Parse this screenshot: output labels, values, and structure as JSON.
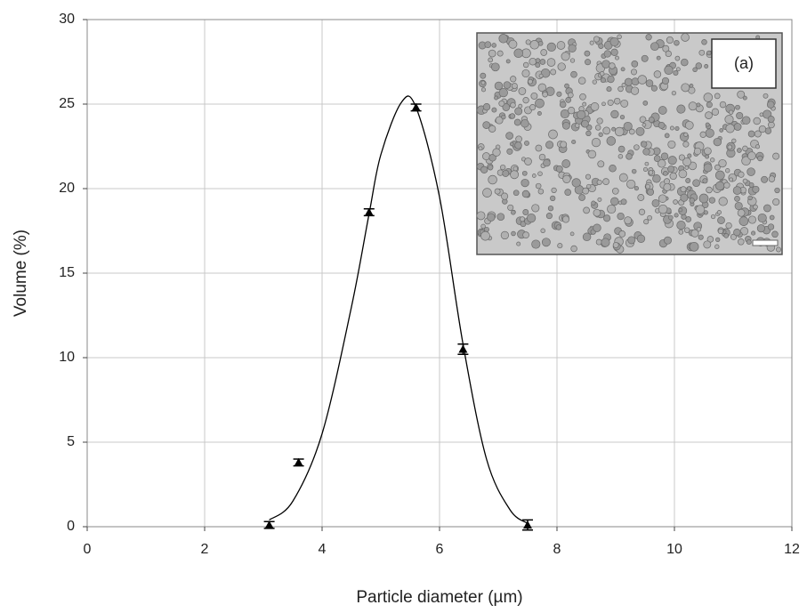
{
  "chart_data": {
    "type": "scatter",
    "x_label": "Particle diameter (µm)",
    "y_label": "Volume (%)",
    "x": [
      3.1,
      3.6,
      4.8,
      5.6,
      6.4,
      7.5
    ],
    "values": [
      0.1,
      3.8,
      18.6,
      24.8,
      10.5,
      0.1
    ],
    "errors": [
      0.2,
      0.2,
      0.2,
      0.2,
      0.3,
      0.3
    ],
    "color": "#000000",
    "fit": {
      "x": [
        3.1,
        3.5,
        4.0,
        4.5,
        4.8,
        5.0,
        5.35,
        5.6,
        6.0,
        6.4,
        6.8,
        7.2,
        7.5
      ],
      "values": [
        0.4,
        1.5,
        5.5,
        13,
        18.5,
        22,
        25.1,
        24.8,
        19.5,
        10.8,
        4,
        1,
        0.2
      ],
      "color": "#000000"
    },
    "inset_label": "(a)",
    "xlim": [
      0,
      12
    ],
    "xticks": [
      0,
      2,
      4,
      6,
      8,
      10,
      12
    ],
    "ylim": [
      0,
      30
    ],
    "yticks": [
      0,
      5,
      10,
      15,
      20,
      25,
      30
    ],
    "grid": true
  }
}
